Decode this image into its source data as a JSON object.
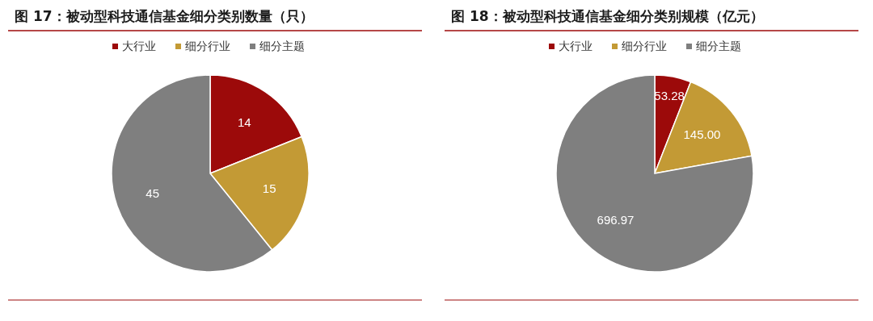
{
  "chart_data": [
    {
      "type": "pie",
      "title": "图 17：被动型科技通信基金细分类别数量（只）",
      "categories": [
        "大行业",
        "细分行业",
        "细分主题"
      ],
      "values": [
        14,
        15,
        45
      ],
      "colors": [
        "#9c0a0a",
        "#c39a35",
        "#7f7f7f"
      ],
      "legend": "top",
      "data_labels": true
    },
    {
      "type": "pie",
      "title": "图 18：被动型科技通信基金细分类别规模（亿元）",
      "categories": [
        "大行业",
        "细分行业",
        "细分主题"
      ],
      "values": [
        53.28,
        145.0,
        696.97
      ],
      "value_labels": [
        "53.28",
        "145.00",
        "696.97"
      ],
      "colors": [
        "#9c0a0a",
        "#c39a35",
        "#7f7f7f"
      ],
      "legend": "top"
    }
  ]
}
